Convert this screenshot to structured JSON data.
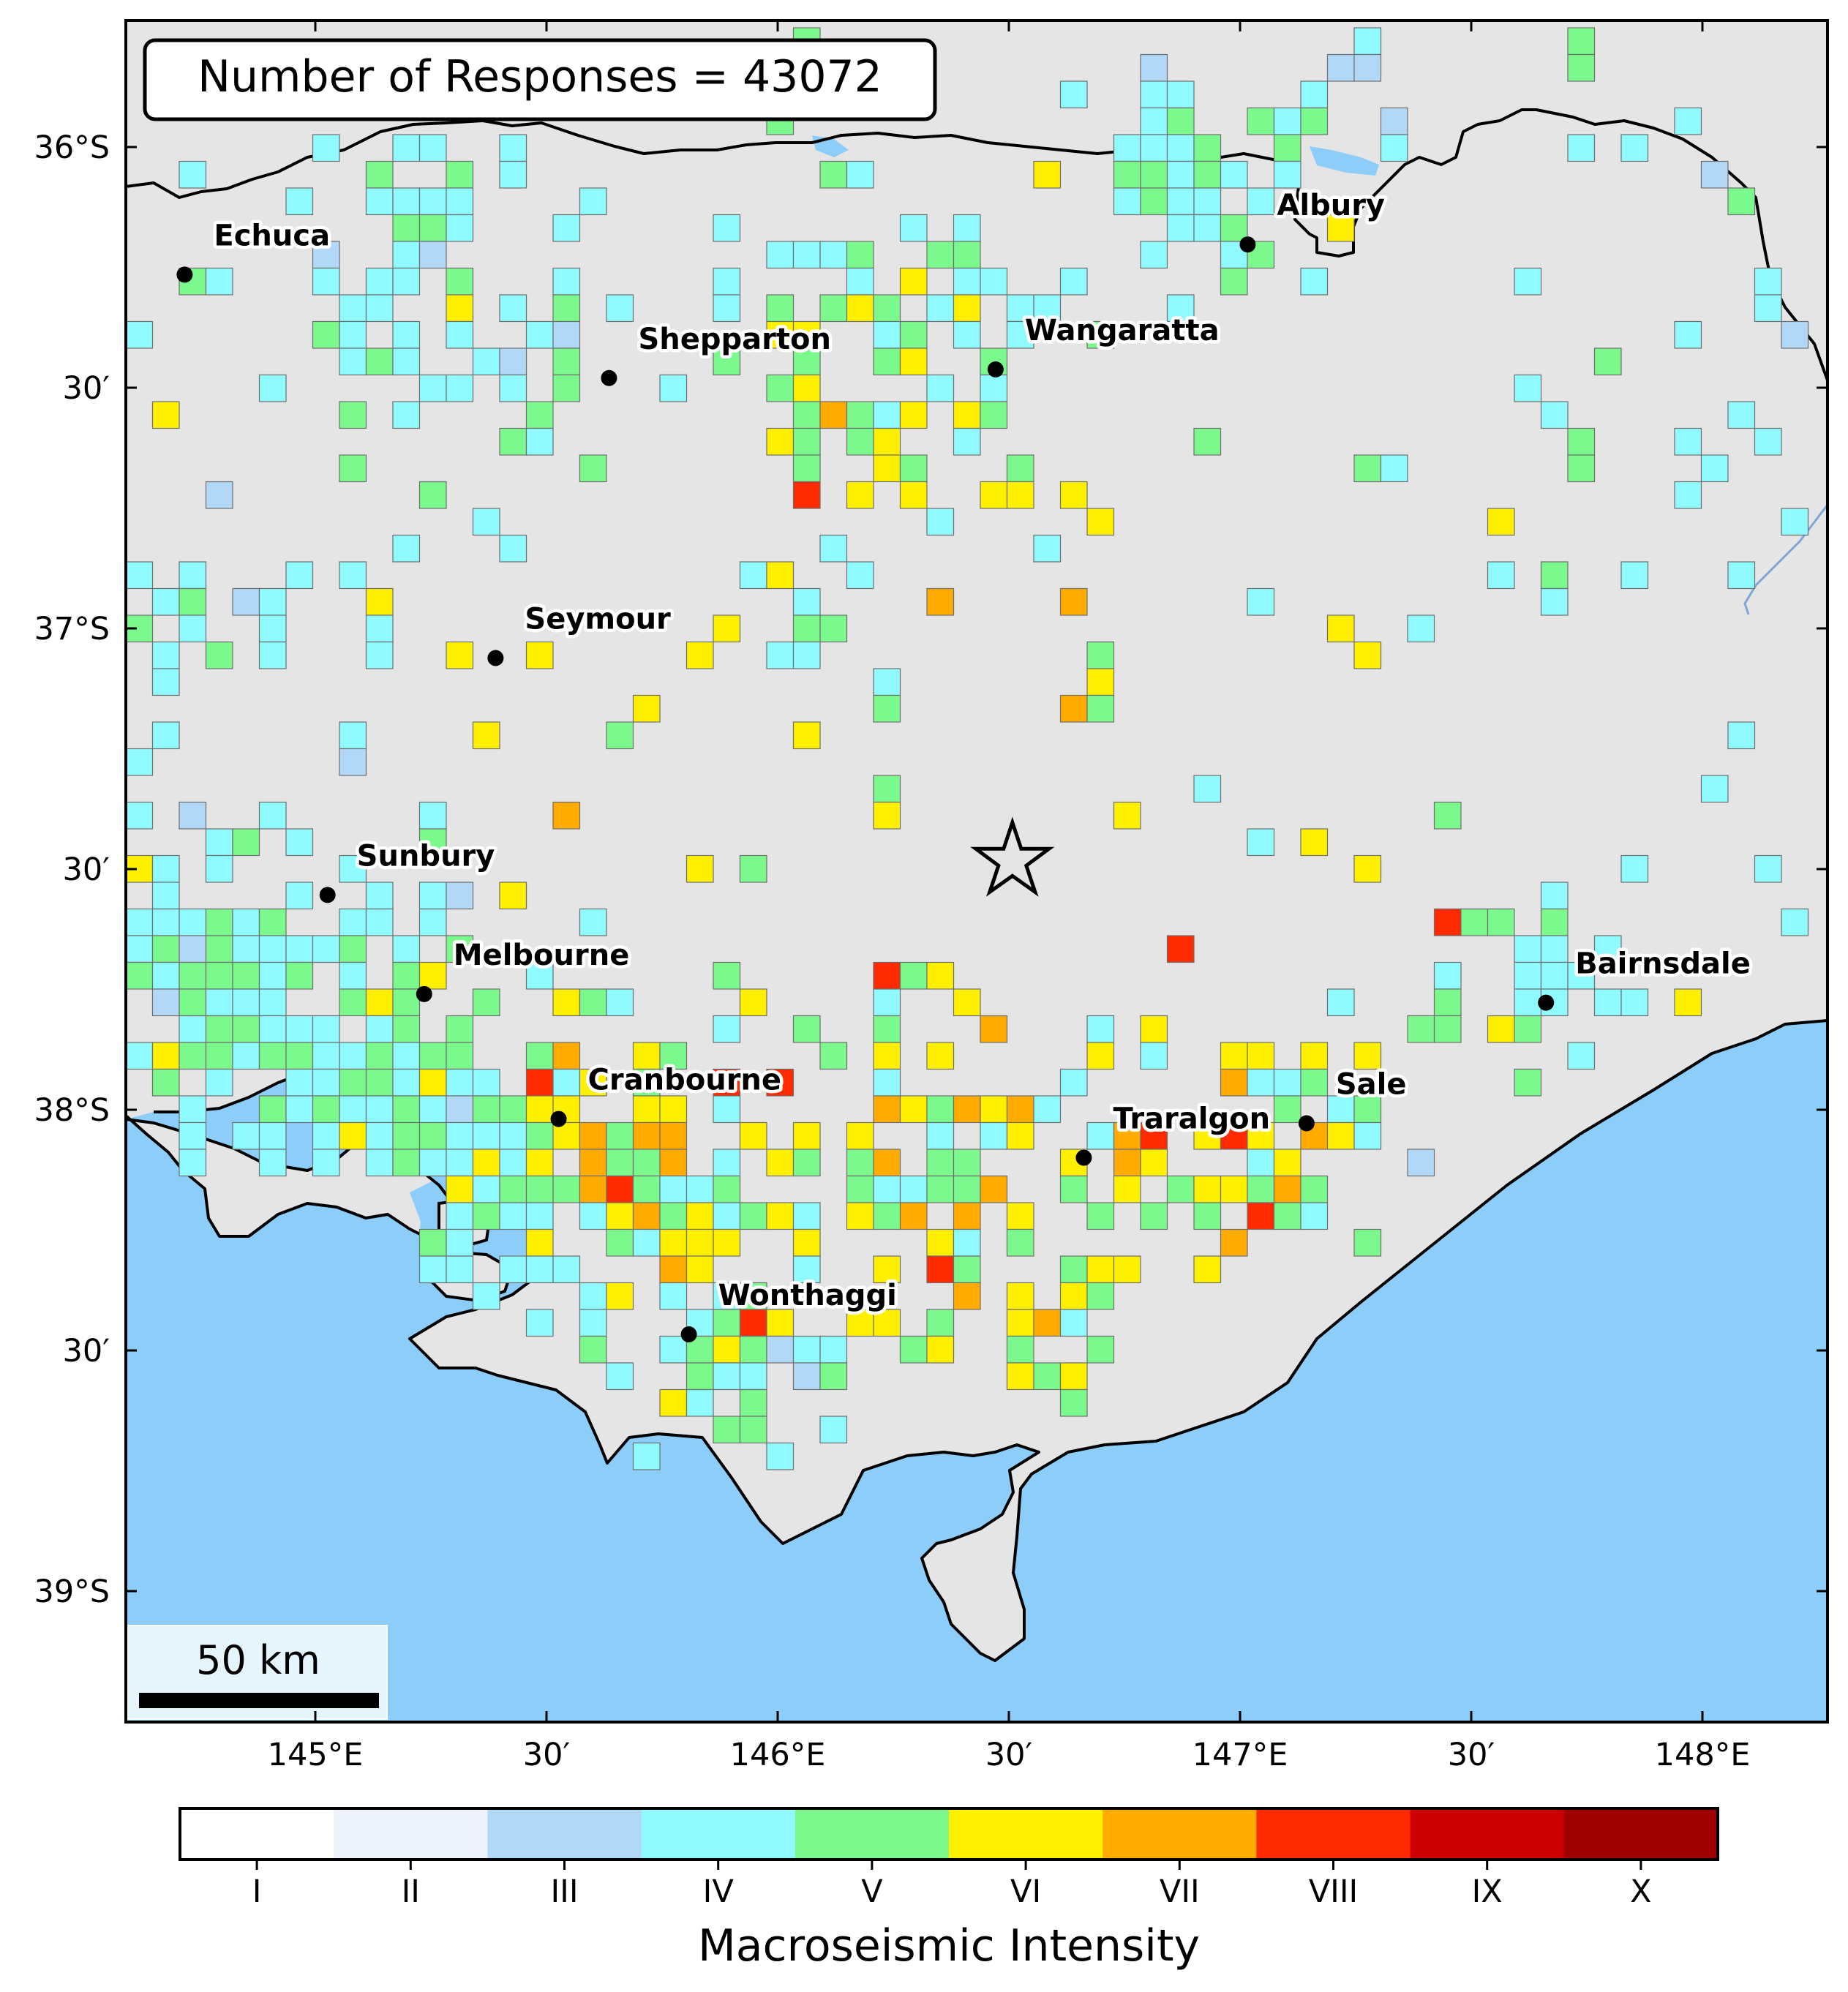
{
  "map": {
    "response_count_text": "Number of Responses = 43072",
    "scale_bar_label": "50 km",
    "lat_tick_labels": [
      "36°S",
      "30′",
      "37°S",
      "30′",
      "38°S",
      "30′",
      "39°S"
    ],
    "lon_tick_labels": [
      "145°E",
      "30′",
      "146°E",
      "30′",
      "147°E",
      "30′",
      "148°E"
    ],
    "lat_range": [
      -39.5,
      -35.55
    ],
    "lon_range": [
      144.25,
      148.3
    ],
    "epicenter": {
      "lon": 146.36,
      "lat": -37.5
    },
    "cities": [
      {
        "name": "Echuca",
        "lon": 144.39,
        "lat": -36.14
      },
      {
        "name": "Shepparton",
        "lon": 145.4,
        "lat": -36.38
      },
      {
        "name": "Wangaratta",
        "lon": 146.32,
        "lat": -36.36
      },
      {
        "name": "Albury",
        "lon": 146.92,
        "lat": -36.07
      },
      {
        "name": "Seymour",
        "lon": 145.13,
        "lat": -37.03
      },
      {
        "name": "Sunbury",
        "lon": 144.73,
        "lat": -37.58
      },
      {
        "name": "Melbourne",
        "lon": 144.96,
        "lat": -37.81
      },
      {
        "name": "Cranbourne",
        "lon": 145.28,
        "lat": -38.1
      },
      {
        "name": "Traralgon",
        "lon": 146.53,
        "lat": -38.19
      },
      {
        "name": "Sale",
        "lon": 147.06,
        "lat": -38.11
      },
      {
        "name": "Bairnsdale",
        "lon": 147.63,
        "lat": -37.83
      },
      {
        "name": "Wonthaggi",
        "lon": 145.59,
        "lat": -38.6
      }
    ]
  },
  "colorbar": {
    "title": "Macroseismic Intensity",
    "levels": [
      {
        "label": "I",
        "color": "#ffffff"
      },
      {
        "label": "II",
        "color": "#eef2fb"
      },
      {
        "label": "III",
        "color": "#b2d8f7"
      },
      {
        "label": "IV",
        "color": "#8ffaff"
      },
      {
        "label": "V",
        "color": "#7cf98c"
      },
      {
        "label": "VI",
        "color": "#fff000"
      },
      {
        "label": "VII",
        "color": "#ffab00"
      },
      {
        "label": "VIII",
        "color": "#ff2a00"
      },
      {
        "label": "IX",
        "color": "#cc0000"
      },
      {
        "label": "X",
        "color": "#9e0000"
      }
    ]
  },
  "colors": {
    "land": "#e5e5e5",
    "water": "#8dcdf9",
    "frame": "#000000"
  }
}
